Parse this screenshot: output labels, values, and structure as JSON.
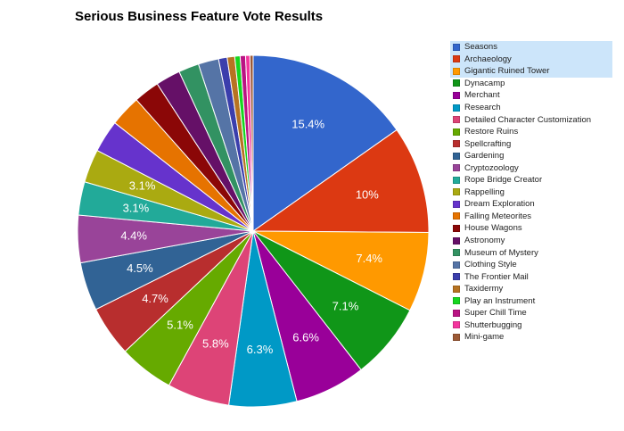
{
  "chart_data": {
    "type": "pie",
    "title": "Serious Business Feature Vote Results",
    "legend_position": "right",
    "slices": [
      {
        "label": "Seasons",
        "value": 15.4,
        "display": "15.4%",
        "color": "#3366cc"
      },
      {
        "label": "Archaeology",
        "value": 10.0,
        "display": "10%",
        "color": "#dc3912"
      },
      {
        "label": "Gigantic Ruined Tower",
        "value": 7.4,
        "display": "7.4%",
        "color": "#ff9900"
      },
      {
        "label": "Dynacamp",
        "value": 7.1,
        "display": "7.1%",
        "color": "#109618"
      },
      {
        "label": "Merchant",
        "value": 6.6,
        "display": "6.6%",
        "color": "#990099"
      },
      {
        "label": "Research",
        "value": 6.3,
        "display": "6.3%",
        "color": "#0099c6"
      },
      {
        "label": "Detailed Character Customization",
        "value": 5.8,
        "display": "5.8%",
        "color": "#dd4477"
      },
      {
        "label": "Restore Ruins",
        "value": 5.1,
        "display": "5.1%",
        "color": "#66aa00"
      },
      {
        "label": "Spellcrafting",
        "value": 4.7,
        "display": "4.7%",
        "color": "#b82e2e"
      },
      {
        "label": "Gardening",
        "value": 4.5,
        "display": "4.5%",
        "color": "#316395"
      },
      {
        "label": "Cryptozoology",
        "value": 4.4,
        "display": "4.4%",
        "color": "#994499"
      },
      {
        "label": "Rope Bridge Creator",
        "value": 3.1,
        "display": "3.1%",
        "color": "#22aa99"
      },
      {
        "label": "Rappelling",
        "value": 3.1,
        "display": "3.1%",
        "color": "#aaaa11"
      },
      {
        "label": "Dream Exploration",
        "value": 3.0,
        "display": "",
        "color": "#6633cc"
      },
      {
        "label": "Falling Meteorites",
        "value": 2.9,
        "display": "",
        "color": "#e67300"
      },
      {
        "label": "House Wagons",
        "value": 2.4,
        "display": "",
        "color": "#8b0707"
      },
      {
        "label": "Astronomy",
        "value": 2.3,
        "display": "",
        "color": "#651067"
      },
      {
        "label": "Museum of Mystery",
        "value": 1.9,
        "display": "",
        "color": "#329262"
      },
      {
        "label": "Clothing Style",
        "value": 1.9,
        "display": "",
        "color": "#5574a6"
      },
      {
        "label": "The Frontier Mail",
        "value": 0.8,
        "display": "",
        "color": "#3b3eac"
      },
      {
        "label": "Taxidermy",
        "value": 0.7,
        "display": "",
        "color": "#b77322"
      },
      {
        "label": "Play an Instrument",
        "value": 0.5,
        "display": "",
        "color": "#16d620"
      },
      {
        "label": "Super Chill Time",
        "value": 0.5,
        "display": "",
        "color": "#b91383"
      },
      {
        "label": "Shutterbugging",
        "value": 0.4,
        "display": "",
        "color": "#f4359e"
      },
      {
        "label": "Mini-game",
        "value": 0.3,
        "display": "",
        "color": "#9c5935"
      }
    ],
    "highlighted_legend": [
      "Seasons",
      "Archaeology",
      "Gigantic Ruined Tower"
    ]
  }
}
